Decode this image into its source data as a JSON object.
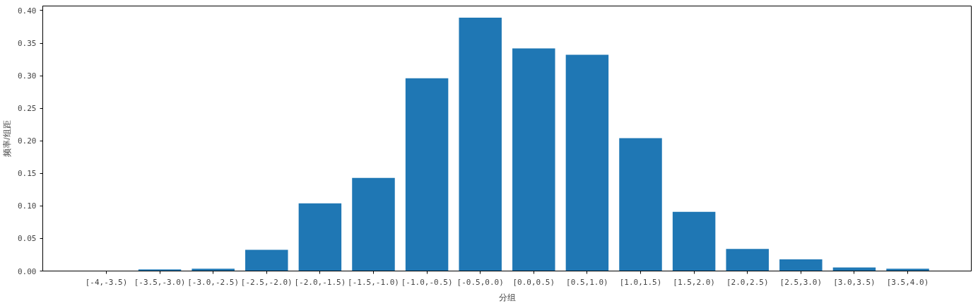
{
  "chart_data": {
    "type": "bar",
    "xlabel": "分组",
    "ylabel": "频率/组距",
    "categories": [
      "[-4,-3.5)",
      "[-3.5,-3.0)",
      "[-3.0,-2.5)",
      "[-2.5,-2.0)",
      "[-2.0,-1.5)",
      "[-1.5,-1.0)",
      "[-1.0,-0.5)",
      "[-0.5,0.0)",
      "[0.0,0.5)",
      "[0.5,1.0)",
      "[1.0,1.5)",
      "[1.5,2.0)",
      "[2.0,2.5)",
      "[2.5,3.0)",
      "[3.0,3.5)",
      "[3.5,4.0)"
    ],
    "values": [
      0,
      0.0025,
      0.0034,
      0.0325,
      0.104,
      0.143,
      0.296,
      0.389,
      0.342,
      0.332,
      0.204,
      0.091,
      0.034,
      0.018,
      0.0054,
      0.0034
    ],
    "color": "#1f77b4",
    "ylim": [
      0,
      0.407
    ],
    "yticks": [
      {
        "value": 0,
        "label": "0.00"
      },
      {
        "value": 0.05,
        "label": "0.05"
      },
      {
        "value": 0.1,
        "label": "0.10"
      },
      {
        "value": 0.15,
        "label": "0.15"
      },
      {
        "value": 0.2,
        "label": "0.20"
      },
      {
        "value": 0.25,
        "label": "0.25"
      },
      {
        "value": 0.3,
        "label": "0.30"
      },
      {
        "value": 0.35,
        "label": "0.35"
      },
      {
        "value": 0.4,
        "label": "0.40"
      }
    ],
    "grid": false
  }
}
